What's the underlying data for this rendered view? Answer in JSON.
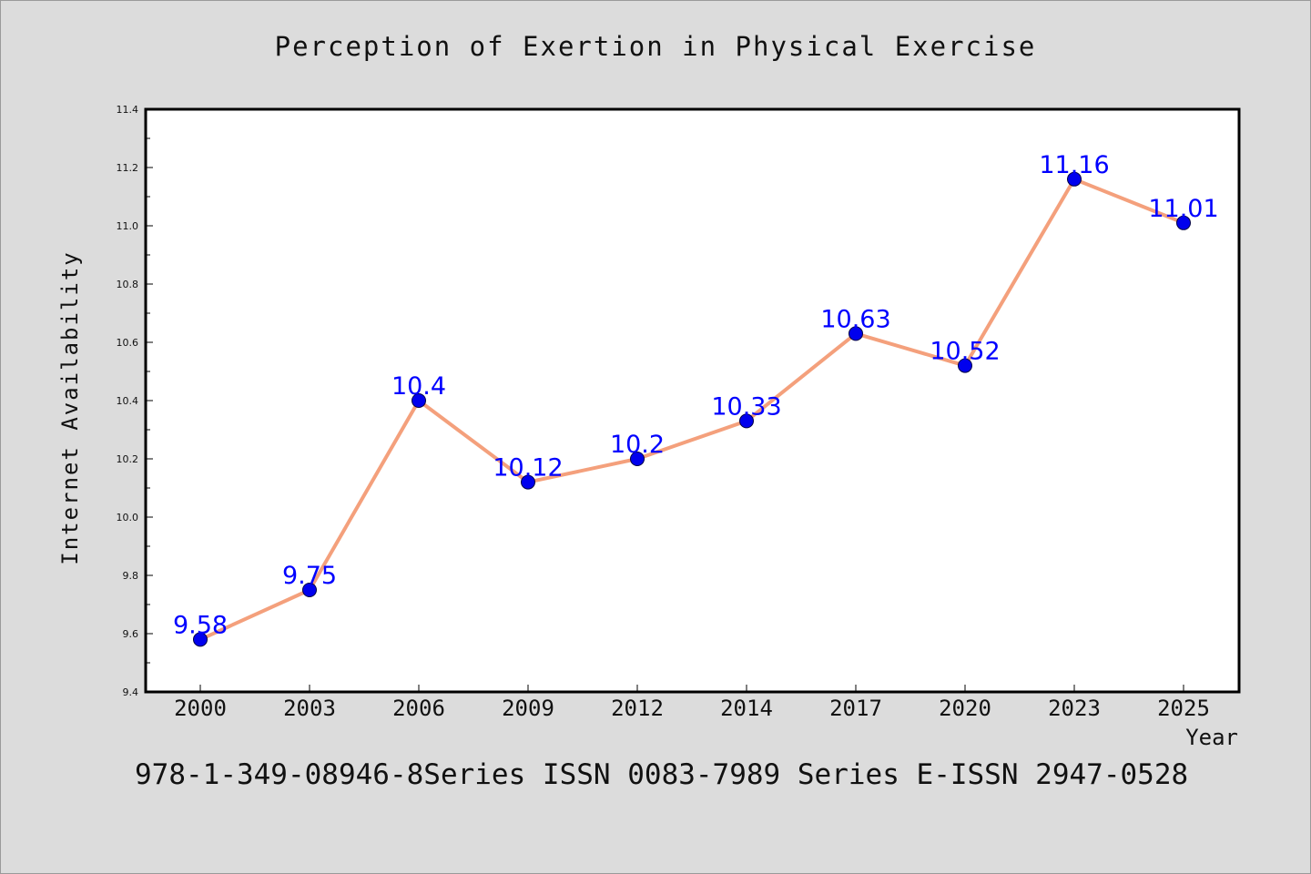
{
  "chart_data": {
    "type": "line",
    "title": "Perception of Exertion in Physical Exercise",
    "xlabel": "Year",
    "ylabel": "Internet Availability",
    "categories": [
      "2000",
      "2003",
      "2006",
      "2009",
      "2012",
      "2014",
      "2017",
      "2020",
      "2023",
      "2025"
    ],
    "series": [
      {
        "values": [
          9.58,
          9.75,
          10.4,
          10.12,
          10.2,
          10.33,
          10.63,
          10.52,
          11.16,
          11.01
        ]
      }
    ],
    "data_labels": [
      "9.58",
      "9.75",
      "10.4",
      "10.12",
      "10.2",
      "10.33",
      "10.63",
      "10.52",
      "11.16",
      "11.01"
    ],
    "ylim": [
      9.4,
      11.4
    ],
    "yticks": [
      "9.4",
      "9.6",
      "9.8",
      "10.0",
      "10.2",
      "10.4",
      "10.6",
      "10.8",
      "11.0",
      "11.2",
      "11.4"
    ],
    "grid": false,
    "colors": {
      "line": "#f4a07c",
      "marker": "#0000ee",
      "label": "#0000ff",
      "background": "#dcdcdc",
      "plot_area": "#ffffff"
    }
  },
  "footer": {
    "text": "978-1-349-08946-8Series ISSN 0083-7989 Series E-ISSN 2947-0528"
  }
}
